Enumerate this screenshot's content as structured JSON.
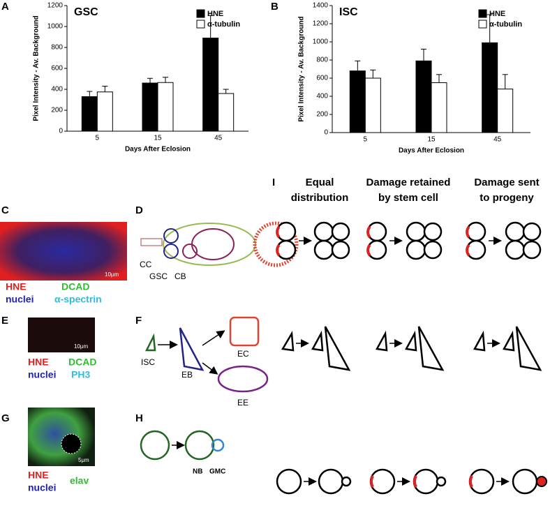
{
  "chart_data": [
    {
      "type": "bar",
      "title": "GSC",
      "y_label": "Pixel Intensity - Av. Background",
      "x_label": "Days After Eclosion",
      "categories": [
        "5",
        "15",
        "45"
      ],
      "series": [
        {
          "name": "HNE",
          "color": "#000000",
          "values": [
            330,
            460,
            890
          ],
          "errors": [
            50,
            45,
            215
          ]
        },
        {
          "name": "α-tubulin",
          "color": "#ffffff",
          "values": [
            375,
            465,
            360
          ],
          "errors": [
            55,
            50,
            40
          ]
        }
      ],
      "ylim": [
        0,
        1200
      ],
      "yticks": [
        0,
        200,
        400,
        600,
        800,
        1000,
        1200
      ],
      "legend": "upper right"
    },
    {
      "type": "bar",
      "title": "ISC",
      "y_label": "Pixel Intensity - Av. Background",
      "x_label": "Days After Eclosion",
      "categories": [
        "5",
        "15",
        "45"
      ],
      "series": [
        {
          "name": "HNE",
          "color": "#000000",
          "values": [
            680,
            790,
            990
          ],
          "errors": [
            110,
            130,
            310
          ]
        },
        {
          "name": "α-tubulin",
          "color": "#ffffff",
          "values": [
            600,
            550,
            480
          ],
          "errors": [
            90,
            90,
            160
          ]
        }
      ],
      "ylim": [
        0,
        1400
      ],
      "yticks": [
        0,
        200,
        400,
        600,
        800,
        1000,
        1200,
        1400
      ],
      "legend": "upper right"
    }
  ],
  "panel_labels": [
    "A",
    "B",
    "C",
    "D",
    "E",
    "F",
    "G",
    "H",
    "I"
  ],
  "headings": [
    [
      "Equal",
      "distribution"
    ],
    [
      "Damage retained",
      "by stem cell"
    ],
    [
      "Damage sent",
      "to progeny"
    ]
  ],
  "micrographs": [
    {
      "scale": "10μm",
      "labels": [
        "HNE",
        "nuclei",
        "DCAD",
        "α-spectrin"
      ]
    },
    {
      "scale": "10μm",
      "labels": [
        "HNE",
        "nuclei",
        "DCAD",
        "PH3"
      ]
    },
    {
      "scale": "5μm",
      "labels": [
        "HNE",
        "nuclei",
        "elav"
      ]
    }
  ],
  "diagrams": {
    "germarium": [
      "CC",
      "GSC",
      "CB"
    ],
    "gut": [
      "ISC",
      "EB",
      "EC",
      "EE"
    ],
    "neuroblast": [
      "NB",
      "GMC"
    ]
  }
}
